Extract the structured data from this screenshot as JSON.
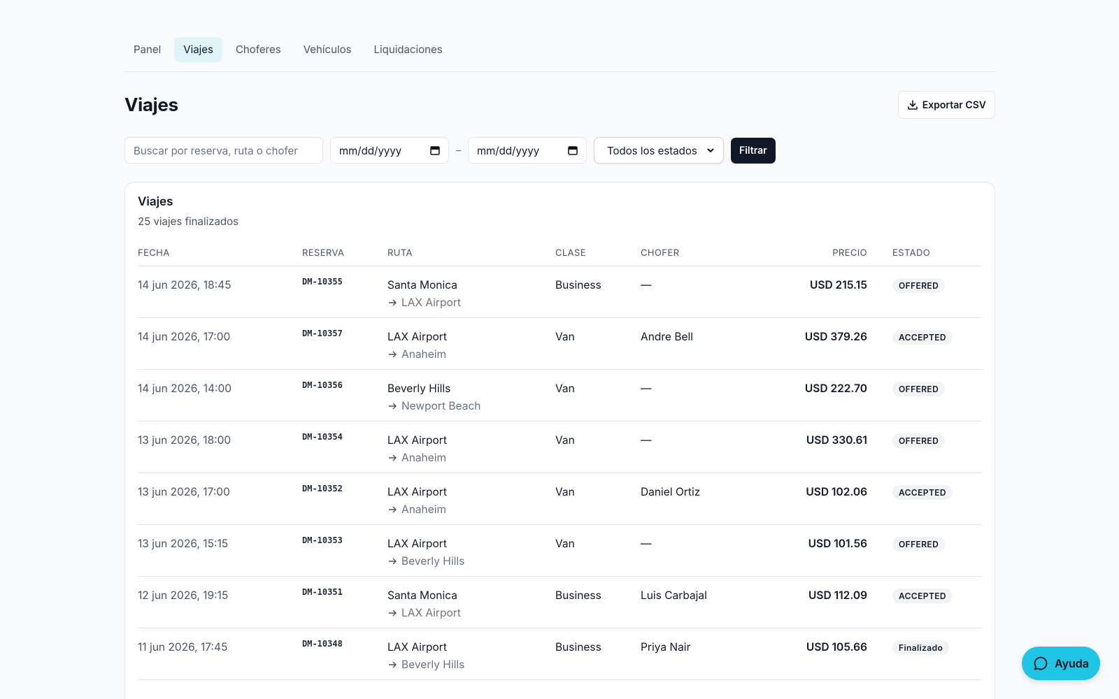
{
  "nav": {
    "tabs": [
      "Panel",
      "Viajes",
      "Choferes",
      "Vehículos",
      "Liquidaciones"
    ],
    "active": 1
  },
  "header": {
    "title": "Viajes",
    "export": "Exportar CSV"
  },
  "filters": {
    "search_placeholder": "Buscar por reserva, ruta o chofer",
    "date_from": "mm/dd/yyyy",
    "separator": "–",
    "date_to": "mm/dd/yyyy",
    "status": "Todos los estados",
    "submit": "Filtrar"
  },
  "card": {
    "title": "Viajes",
    "subtitle": "25 viajes finalizados"
  },
  "table": {
    "columns": [
      "FECHA",
      "RESERVA",
      "RUTA",
      "CLASE",
      "CHOFER",
      "PRECIO",
      "ESTADO"
    ],
    "rows": [
      [
        "14 jun 2026, 18:45",
        "DM-10355",
        "Santa Monica",
        "LAX Airport",
        "Business",
        "—",
        "USD 215.15",
        "OFFERED"
      ],
      [
        "14 jun 2026, 17:00",
        "DM-10357",
        "LAX Airport",
        "Anaheim",
        "Van",
        "Andre Bell",
        "USD 379.26",
        "ACCEPTED"
      ],
      [
        "14 jun 2026, 14:00",
        "DM-10356",
        "Beverly Hills",
        "Newport Beach",
        "Van",
        "—",
        "USD 222.70",
        "OFFERED"
      ],
      [
        "13 jun 2026, 18:00",
        "DM-10354",
        "LAX Airport",
        "Anaheim",
        "Van",
        "—",
        "USD 330.61",
        "OFFERED"
      ],
      [
        "13 jun 2026, 17:00",
        "DM-10352",
        "LAX Airport",
        "Anaheim",
        "Van",
        "Daniel Ortiz",
        "USD 102.06",
        "ACCEPTED"
      ],
      [
        "13 jun 2026, 15:15",
        "DM-10353",
        "LAX Airport",
        "Beverly Hills",
        "Van",
        "—",
        "USD 101.56",
        "OFFERED"
      ],
      [
        "12 jun 2026, 19:15",
        "DM-10351",
        "Santa Monica",
        "LAX Airport",
        "Business",
        "Luis Carbajal",
        "USD 112.09",
        "ACCEPTED"
      ],
      [
        "11 jun 2026, 17:45",
        "DM-10348",
        "LAX Airport",
        "Beverly Hills",
        "Business",
        "Priya Nair",
        "USD 105.66",
        "Finalizado"
      ]
    ]
  },
  "help": "Ayuda"
}
